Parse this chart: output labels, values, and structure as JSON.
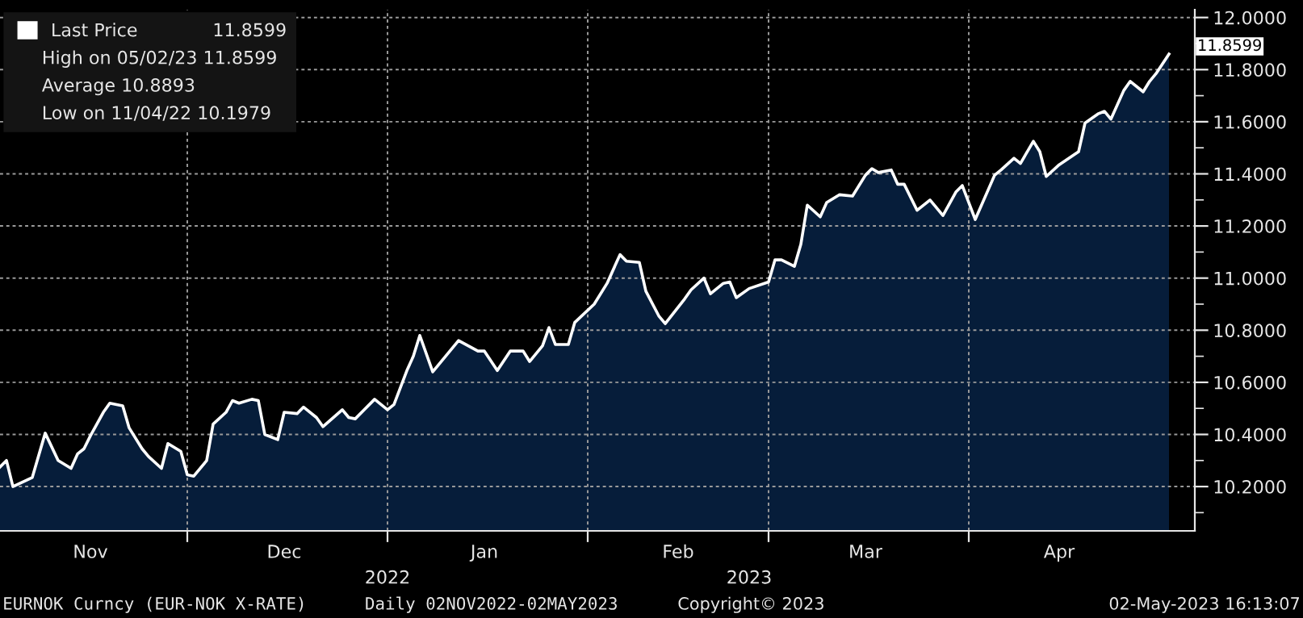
{
  "chart_data": {
    "type": "area",
    "x": [
      "2022-11-02",
      "2022-11-03",
      "2022-11-04",
      "2022-11-07",
      "2022-11-09",
      "2022-11-11",
      "2022-11-13",
      "2022-11-14",
      "2022-11-15",
      "2022-11-16",
      "2022-11-18",
      "2022-11-19",
      "2022-11-21",
      "2022-11-22",
      "2022-11-24",
      "2022-11-25",
      "2022-11-27",
      "2022-11-28",
      "2022-11-30",
      "2022-12-01",
      "2022-12-02",
      "2022-12-04",
      "2022-12-05",
      "2022-12-07",
      "2022-12-08",
      "2022-12-09",
      "2022-12-11",
      "2022-12-12",
      "2022-12-13",
      "2022-12-15",
      "2022-12-16",
      "2022-12-18",
      "2022-12-19",
      "2022-12-21",
      "2022-12-22",
      "2022-12-25",
      "2022-12-26",
      "2022-12-27",
      "2022-12-30",
      "2023-01-01",
      "2023-01-02",
      "2023-01-04",
      "2023-01-05",
      "2023-01-06",
      "2023-01-08",
      "2023-01-12",
      "2023-01-15",
      "2023-01-16",
      "2023-01-18",
      "2023-01-20",
      "2023-01-22",
      "2023-01-23",
      "2023-01-25",
      "2023-01-26",
      "2023-01-27",
      "2023-01-29",
      "2023-01-30",
      "2023-02-02",
      "2023-02-04",
      "2023-02-06",
      "2023-02-07",
      "2023-02-09",
      "2023-02-10",
      "2023-02-12",
      "2023-02-13",
      "2023-02-16",
      "2023-02-17",
      "2023-02-19",
      "2023-02-20",
      "2023-02-22",
      "2023-02-23",
      "2023-02-24",
      "2023-02-26",
      "2023-03-01",
      "2023-03-02",
      "2023-03-03",
      "2023-03-05",
      "2023-03-06",
      "2023-03-07",
      "2023-03-09",
      "2023-03-10",
      "2023-03-12",
      "2023-03-14",
      "2023-03-16",
      "2023-03-17",
      "2023-03-18",
      "2023-03-20",
      "2023-03-21",
      "2023-03-22",
      "2023-03-24",
      "2023-03-26",
      "2023-03-28",
      "2023-03-30",
      "2023-03-31",
      "2023-04-02",
      "2023-04-05",
      "2023-04-06",
      "2023-04-08",
      "2023-04-09",
      "2023-04-11",
      "2023-04-12",
      "2023-04-13",
      "2023-04-15",
      "2023-04-18",
      "2023-04-19",
      "2023-04-21",
      "2023-04-22",
      "2023-04-23",
      "2023-04-25",
      "2023-04-26",
      "2023-04-28",
      "2023-04-29",
      "2023-04-30",
      "2023-05-02"
    ],
    "series": [
      {
        "name": "Last Price",
        "color": "#ffffff",
        "values": [
          10.275,
          10.3,
          10.2,
          10.235,
          10.405,
          10.3,
          10.27,
          10.325,
          10.345,
          10.395,
          10.485,
          10.52,
          10.51,
          10.425,
          10.345,
          10.315,
          10.27,
          10.365,
          10.335,
          10.245,
          10.24,
          10.3,
          10.44,
          10.485,
          10.53,
          10.52,
          10.535,
          10.53,
          10.4,
          10.38,
          10.485,
          10.48,
          10.505,
          10.465,
          10.43,
          10.495,
          10.465,
          10.46,
          10.535,
          10.495,
          10.515,
          10.645,
          10.7,
          10.78,
          10.64,
          10.76,
          10.72,
          10.72,
          10.645,
          10.72,
          10.72,
          10.68,
          10.74,
          10.81,
          10.745,
          10.745,
          10.83,
          10.9,
          10.98,
          11.09,
          11.065,
          11.06,
          10.95,
          10.855,
          10.825,
          10.92,
          10.955,
          11.0,
          10.94,
          10.98,
          10.985,
          10.925,
          10.96,
          10.985,
          11.07,
          11.07,
          11.045,
          11.13,
          11.28,
          11.235,
          11.29,
          11.32,
          11.315,
          11.395,
          11.42,
          11.405,
          11.415,
          11.36,
          11.36,
          11.26,
          11.3,
          11.24,
          11.33,
          11.355,
          11.225,
          11.395,
          11.415,
          11.46,
          11.44,
          11.525,
          11.485,
          11.39,
          11.435,
          11.485,
          11.595,
          11.63,
          11.64,
          11.61,
          11.72,
          11.755,
          11.715,
          11.755,
          11.785,
          11.8599
        ]
      }
    ],
    "xlim": [
      "2022-11-02",
      "2023-05-06"
    ],
    "xticks": [
      {
        "value": "2022-11-16",
        "label": "Nov"
      },
      {
        "value": "2022-12-01",
        "label": null
      },
      {
        "value": "2022-12-16",
        "label": "Dec"
      },
      {
        "value": "2023-01-01",
        "label": null
      },
      {
        "value": "2023-01-16",
        "label": "Jan"
      },
      {
        "value": "2023-02-01",
        "label": null
      },
      {
        "value": "2023-02-15",
        "label": "Feb"
      },
      {
        "value": "2023-03-01",
        "label": null
      },
      {
        "value": "2023-03-16",
        "label": "Mar"
      },
      {
        "value": "2023-04-01",
        "label": null
      },
      {
        "value": "2023-04-15",
        "label": "Apr"
      }
    ],
    "ylim": [
      10.03,
      12.03
    ],
    "yticks": [
      {
        "value": 10.1,
        "label": null
      },
      {
        "value": 10.2,
        "label": "10.2000"
      },
      {
        "value": 10.3,
        "label": null
      },
      {
        "value": 10.4,
        "label": "10.4000"
      },
      {
        "value": 10.5,
        "label": null
      },
      {
        "value": 10.6,
        "label": "10.6000"
      },
      {
        "value": 10.7,
        "label": null
      },
      {
        "value": 10.8,
        "label": "10.8000"
      },
      {
        "value": 10.9,
        "label": null
      },
      {
        "value": 11.0,
        "label": "11.0000"
      },
      {
        "value": 11.1,
        "label": null
      },
      {
        "value": 11.2,
        "label": "11.2000"
      },
      {
        "value": 11.3,
        "label": null
      },
      {
        "value": 11.4,
        "label": "11.4000"
      },
      {
        "value": 11.5,
        "label": null
      },
      {
        "value": 11.6,
        "label": "11.6000"
      },
      {
        "value": 11.7,
        "label": null
      },
      {
        "value": 11.8,
        "label": "11.8000"
      },
      {
        "value": 11.9,
        "label": null
      },
      {
        "value": 12.0,
        "label": "12.0000"
      }
    ],
    "grid": true,
    "legend": "top left",
    "annotations": [
      "11.8599",
      "High on 05/02/23 11.8599",
      "Average 10.8893",
      "Low on 11/04/22 10.1979",
      {
        "text": "11.8599",
        "x": "2023-05-02",
        "y": 11.8599
      },
      "2022",
      "2023",
      "EURNOK Curncy (EUR-NOK X-RATE)",
      "Daily 02NOV2022-02MAY2023",
      "Copyright© 2023",
      "02-May-2023 16:13:07"
    ]
  }
}
